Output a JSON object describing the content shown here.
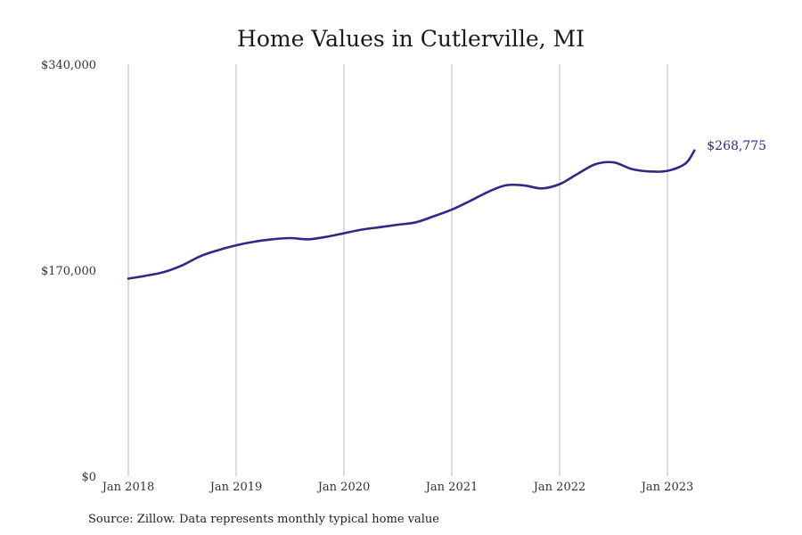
{
  "chart_data": {
    "type": "line",
    "title": "Home Values in Cutlerville, MI",
    "xlabel": "",
    "ylabel": "",
    "ylim": [
      0,
      340000
    ],
    "y_ticks": [
      {
        "value": 0,
        "label": "$0"
      },
      {
        "value": 170000,
        "label": "$170,000"
      },
      {
        "value": 340000,
        "label": "$340,000"
      }
    ],
    "x_range": [
      "2018-01",
      "2023-12"
    ],
    "x_ticks": [
      "Jan 2018",
      "Jan 2019",
      "Jan 2020",
      "Jan 2021",
      "Jan 2022",
      "Jan 2023"
    ],
    "grid": "vertical",
    "line_color": "#2d2a87",
    "end_label": "$268,775",
    "series": [
      {
        "x": [
          "2018-01",
          "2018-03",
          "2018-05",
          "2018-07",
          "2018-09",
          "2018-11",
          "2019-01",
          "2019-03",
          "2019-05",
          "2019-07",
          "2019-09",
          "2019-11",
          "2020-01",
          "2020-03",
          "2020-05",
          "2020-07",
          "2020-09",
          "2020-11",
          "2021-01",
          "2021-03",
          "2021-05",
          "2021-07",
          "2021-09",
          "2021-11",
          "2022-01",
          "2022-03",
          "2022-05",
          "2022-07",
          "2022-09",
          "2022-11",
          "2023-01",
          "2023-03",
          "2023-04"
        ],
        "values": [
          163000,
          165500,
          168500,
          174000,
          181500,
          186500,
          190500,
          193500,
          195500,
          196500,
          195500,
          197500,
          200500,
          203500,
          205500,
          207500,
          209500,
          214500,
          220000,
          227000,
          234500,
          240000,
          240000,
          237500,
          241000,
          249500,
          257500,
          259000,
          253500,
          251500,
          252000,
          258000,
          268775
        ]
      }
    ]
  },
  "source": "Source: Zillow. Data represents monthly typical home value"
}
